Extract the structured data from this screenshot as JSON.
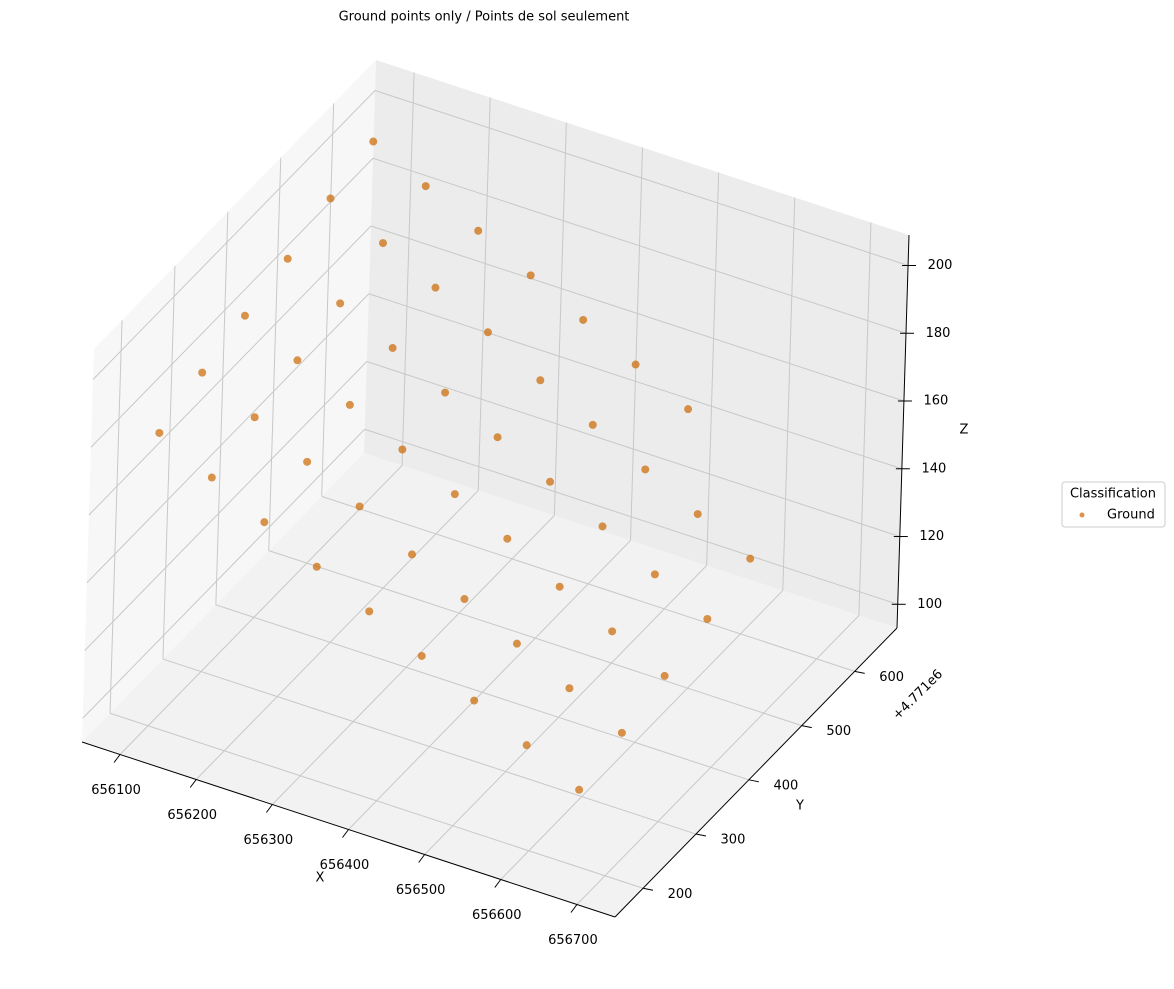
{
  "chart_data": {
    "type": "scatter3d",
    "title": "Ground points only / Points de sol seulement",
    "xlabel": "X",
    "ylabel": "Y",
    "zlabel": "Z",
    "y_offset_label": "+4.771e6",
    "xlim": [
      656050,
      656750
    ],
    "ylim": [
      147,
      680
    ],
    "zlim": [
      93,
      209
    ],
    "xticks": [
      656100,
      656200,
      656300,
      656400,
      656500,
      656600,
      656700
    ],
    "yticks": [
      200,
      300,
      400,
      500,
      600
    ],
    "zticks": [
      100,
      120,
      140,
      160,
      180,
      200
    ],
    "grid": true,
    "legend": {
      "title": "Classification",
      "corner": "right"
    },
    "series": [
      {
        "name": "Ground",
        "color": "#cc6600",
        "x": [
          656085,
          656085,
          656085,
          656085,
          656085,
          656085,
          656155,
          656155,
          656155,
          656155,
          656155,
          656155,
          656225,
          656225,
          656225,
          656225,
          656225,
          656225,
          656295,
          656295,
          656295,
          656295,
          656295,
          656295,
          656365,
          656365,
          656365,
          656365,
          656365,
          656365,
          656435,
          656435,
          656435,
          656435,
          656435,
          656435,
          656505,
          656505,
          656505,
          656505,
          656505,
          656505,
          656575,
          656575,
          656575,
          656575,
          656575,
          656645,
          656645,
          656645,
          656645,
          656645
        ],
        "y": [
          227,
          307,
          387,
          467,
          547,
          627,
          227,
          307,
          387,
          467,
          547,
          627,
          227,
          307,
          387,
          467,
          547,
          627,
          227,
          307,
          387,
          467,
          547,
          627,
          227,
          307,
          387,
          467,
          547,
          627,
          227,
          307,
          387,
          467,
          547,
          627,
          227,
          307,
          387,
          467,
          547,
          627,
          227,
          307,
          387,
          467,
          547,
          227,
          307,
          387,
          467,
          547
        ],
        "z": [
          174,
          179,
          183,
          187,
          192,
          196,
          166,
          171,
          175,
          179,
          184,
          188,
          158,
          163,
          167,
          171,
          176,
          180,
          150,
          155,
          159,
          163,
          168,
          172,
          142,
          146,
          151,
          155,
          159,
          164,
          134,
          138,
          143,
          147,
          151,
          156,
          126,
          130,
          134,
          139,
          143,
          148,
          118,
          122,
          126,
          130,
          135,
          110,
          114,
          118,
          122,
          127
        ]
      }
    ]
  }
}
